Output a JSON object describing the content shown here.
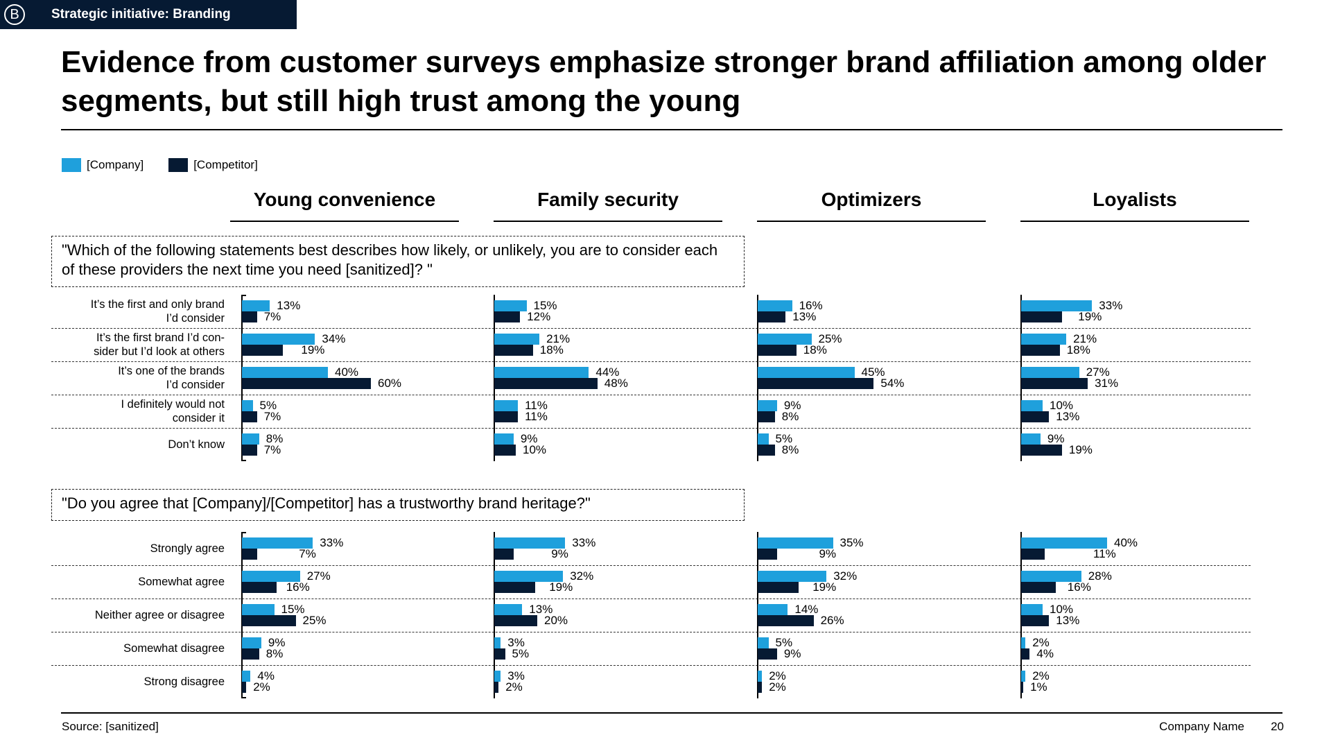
{
  "header": {
    "badge": "B",
    "tag": "Strategic initiative: Branding",
    "title": "Evidence from customer surveys emphasize stronger brand affiliation among older segments, but still high trust among the young"
  },
  "legend": [
    {
      "label": "[Company]",
      "color": "#1fa0dc"
    },
    {
      "label": "[Competitor]",
      "color": "#061a33"
    }
  ],
  "chart_data": [
    {
      "type": "bar",
      "title": "\"Which of the following statements best describes how likely, or unlikely, you are to consider each of these providers the next time you need [sanitized]? \"",
      "segments": [
        "Young convenience",
        "Family security",
        "Optimizers",
        "Loyalists"
      ],
      "categories": [
        "It’s the first and only brand I’d consider",
        "It’s the first brand I’d con-sider but I’d look at others",
        "It’s one of the brands I’d consider",
        "I definitely would not consider it",
        "Don’t know"
      ],
      "category_lines": [
        [
          "It’s the first and only brand",
          "I’d consider"
        ],
        [
          "It’s the first brand I’d con-",
          "sider but I’d look at others"
        ],
        [
          "It’s one of the brands",
          "I’d consider"
        ],
        [
          "I definitely would not",
          "consider it"
        ],
        [
          "Don’t know"
        ]
      ],
      "series": [
        {
          "name": "[Company]",
          "values": [
            [
              13,
              34,
              40,
              5,
              8
            ],
            [
              15,
              21,
              44,
              11,
              9
            ],
            [
              16,
              25,
              45,
              9,
              5
            ],
            [
              33,
              21,
              27,
              10,
              9
            ]
          ]
        },
        {
          "name": "[Competitor]",
          "values": [
            [
              7,
              19,
              60,
              7,
              7
            ],
            [
              12,
              18,
              48,
              11,
              10
            ],
            [
              13,
              18,
              54,
              8,
              8
            ],
            [
              19,
              18,
              31,
              13,
              19
            ]
          ]
        }
      ],
      "unit": "%"
    },
    {
      "type": "bar",
      "title": "\"Do you agree that [Company]/[Competitor] has a trustworthy brand heritage?\"",
      "segments": [
        "Young convenience",
        "Family security",
        "Optimizers",
        "Loyalists"
      ],
      "categories": [
        "Strongly agree",
        "Somewhat agree",
        "Neither agree or disagree",
        "Somewhat disagree",
        "Strong disagree"
      ],
      "category_lines": [
        [
          "Strongly agree"
        ],
        [
          "Somewhat agree"
        ],
        [
          "Neither agree or disagree"
        ],
        [
          "Somewhat disagree"
        ],
        [
          "Strong disagree"
        ]
      ],
      "series": [
        {
          "name": "[Company]",
          "values": [
            [
              33,
              27,
              15,
              9,
              4
            ],
            [
              33,
              32,
              13,
              3,
              3
            ],
            [
              35,
              32,
              14,
              5,
              2
            ],
            [
              40,
              28,
              10,
              2,
              2
            ]
          ]
        },
        {
          "name": "[Competitor]",
          "values": [
            [
              7,
              16,
              25,
              8,
              2
            ],
            [
              9,
              19,
              20,
              5,
              2
            ],
            [
              9,
              19,
              26,
              9,
              2
            ],
            [
              11,
              16,
              13,
              4,
              1
            ]
          ]
        }
      ],
      "unit": "%"
    }
  ],
  "footer": {
    "source": "Source: [sanitized]",
    "company": "Company Name",
    "page": "20"
  }
}
